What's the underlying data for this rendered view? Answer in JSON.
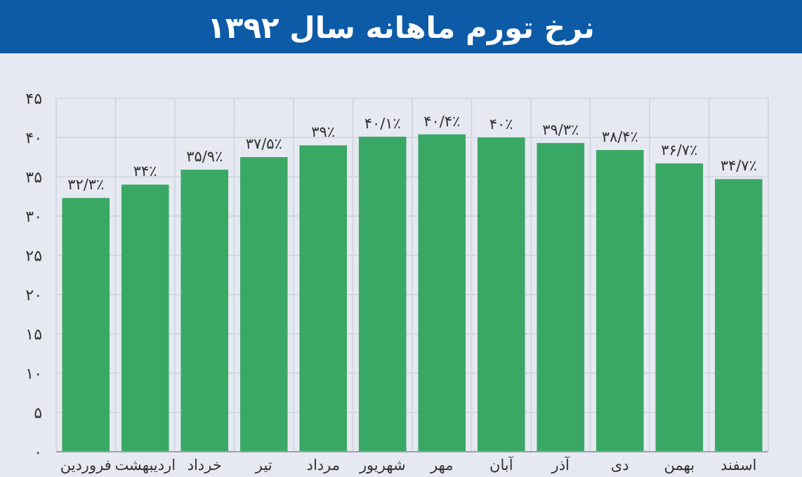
{
  "chart_data": {
    "type": "bar",
    "title": "نرخ تورم ماهانه سال ۱۳۹۲",
    "categories": [
      "فروردین",
      "اردیبهشت",
      "خرداد",
      "تیر",
      "مرداد",
      "شهریور",
      "مهر",
      "آبان",
      "آذر",
      "دی",
      "بهمن",
      "اسفند"
    ],
    "values": [
      32.3,
      34,
      35.9,
      37.5,
      39,
      40.1,
      40.4,
      40,
      39.3,
      38.4,
      36.7,
      34.7
    ],
    "value_labels": [
      "۳۲/۳٪",
      "۳۴٪",
      "۳۵/۹٪",
      "۳۷/۵٪",
      "۳۹٪",
      "۴۰/۱٪",
      "۴۰/۴٪",
      "۴۰٪",
      "۳۹/۳٪",
      "۳۸/۴٪",
      "۳۶/۷٪",
      "۳۴/۷٪"
    ],
    "color": "#3aa865",
    "ylim": [
      0,
      45
    ],
    "yticks": [
      {
        "value": 0,
        "label": "۰"
      },
      {
        "value": 5,
        "label": "۵"
      },
      {
        "value": 10,
        "label": "۱۰"
      },
      {
        "value": 15,
        "label": "۱۵"
      },
      {
        "value": 20,
        "label": "۲۰"
      },
      {
        "value": 25,
        "label": "۲۵"
      },
      {
        "value": 30,
        "label": "۳۰"
      },
      {
        "value": 35,
        "label": "۳۵"
      },
      {
        "value": 40,
        "label": "۴۰"
      },
      {
        "value": 45,
        "label": "۴۵"
      }
    ],
    "grid": true
  }
}
